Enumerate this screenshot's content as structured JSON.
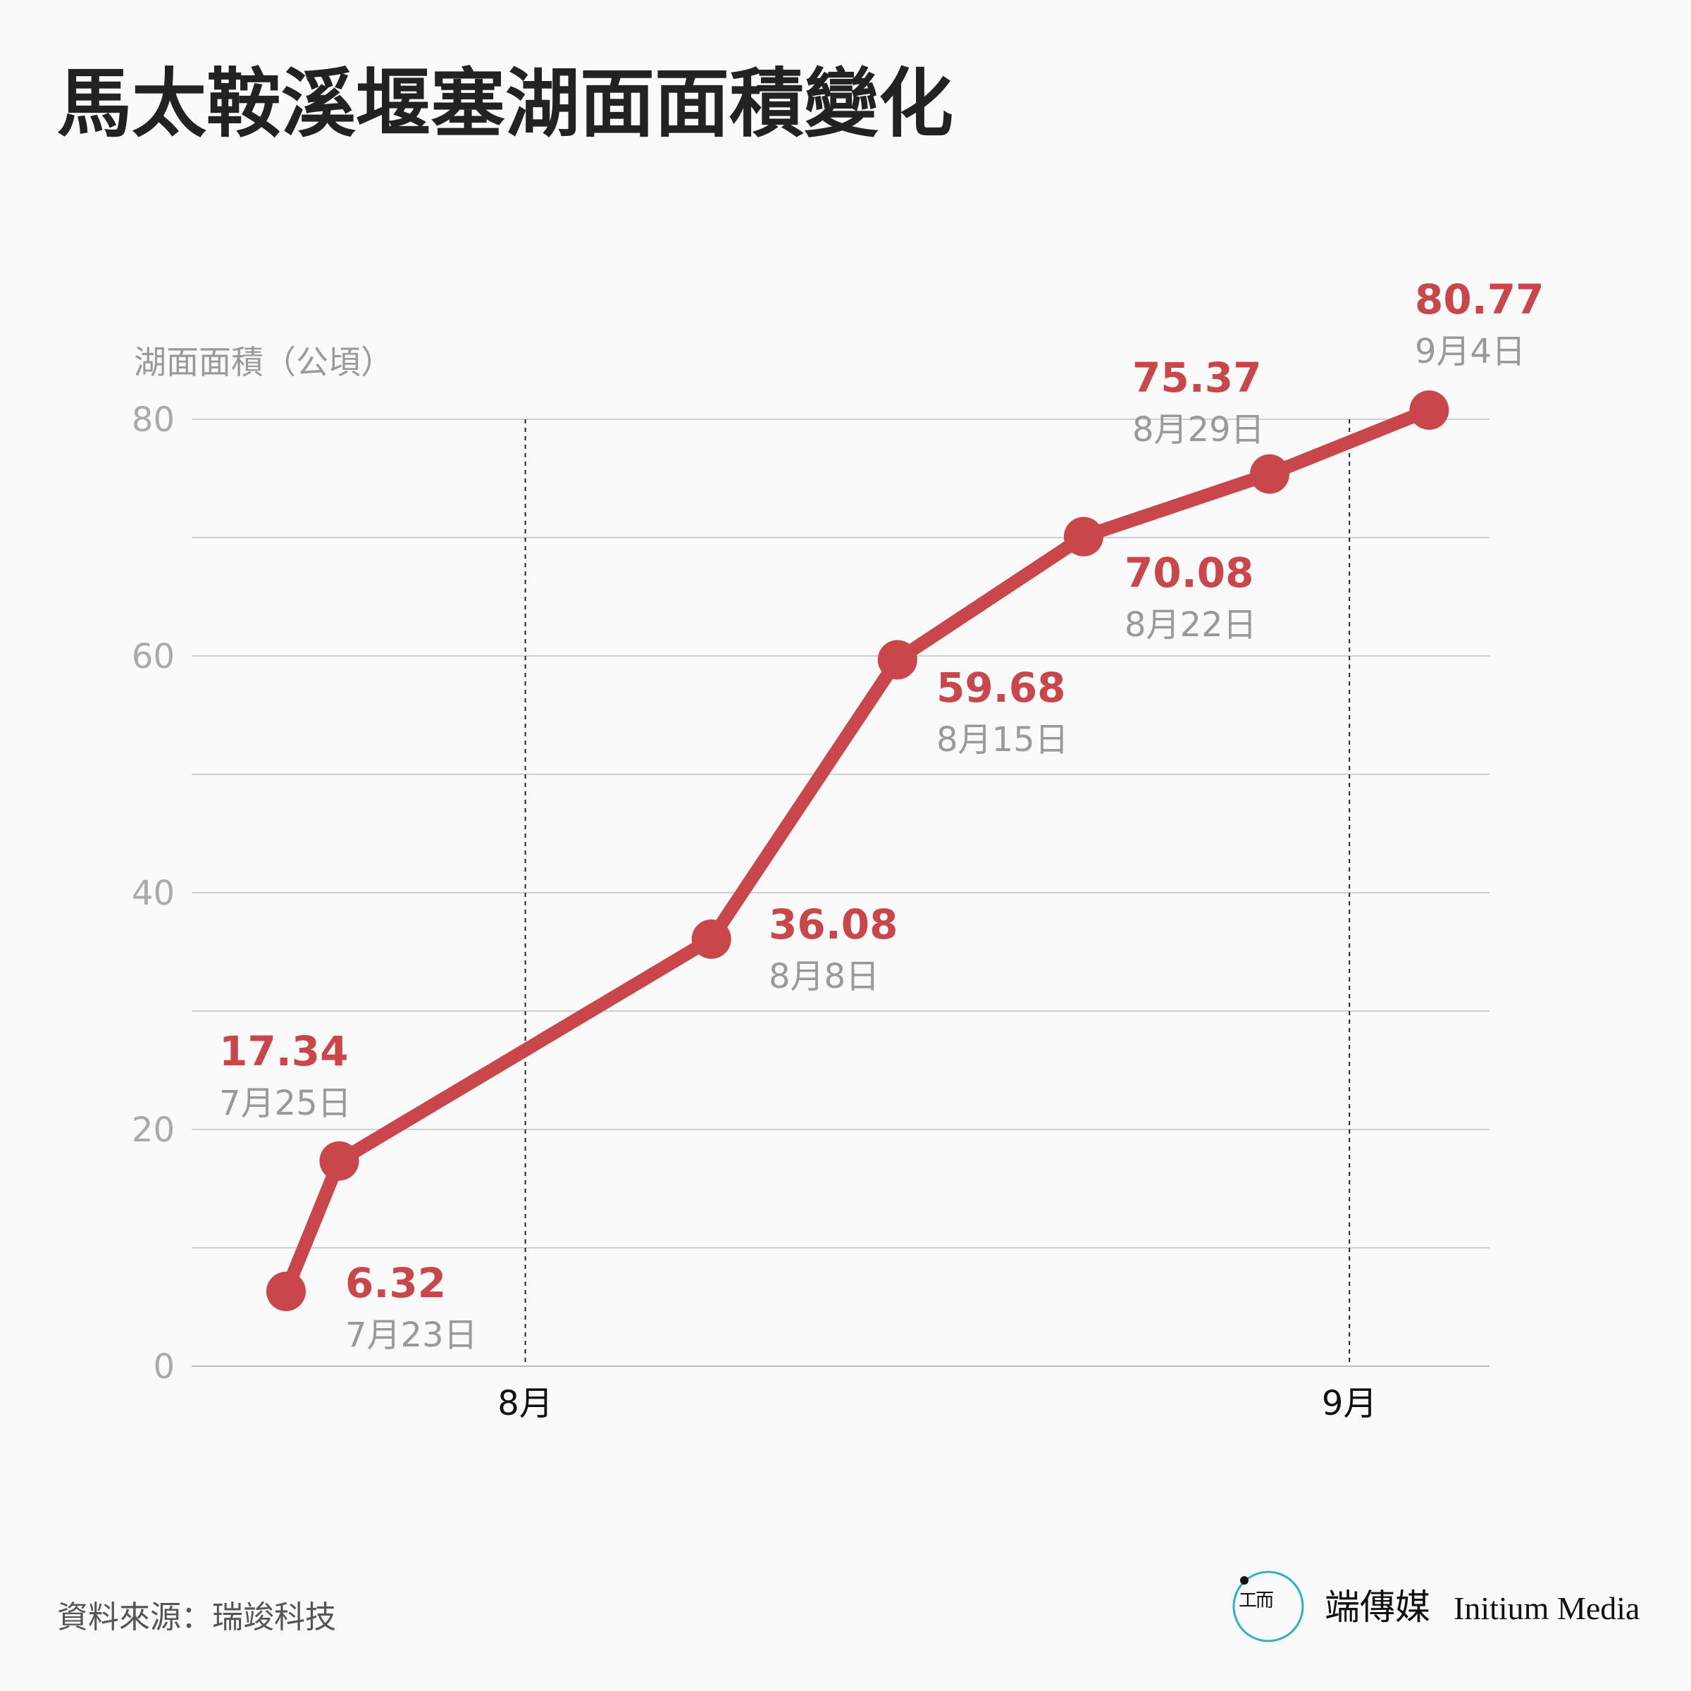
{
  "chart_data": {
    "type": "line",
    "title": "馬太鞍溪堰塞湖面面積變化",
    "ylabel": "湖面面積（公頃）",
    "xlabel": "",
    "ylim": [
      0,
      80
    ],
    "yticks": [
      0,
      20,
      40,
      60,
      80
    ],
    "grid": true,
    "x_month_ticks": [
      {
        "label": "8月",
        "day_offset": 9
      },
      {
        "label": "9月",
        "day_offset": 40
      }
    ],
    "series": [
      {
        "name": "湖面面積",
        "color": "#c9474b",
        "points": [
          {
            "date": "7月23日",
            "day_offset": 0,
            "value": 6.32,
            "label": "6.32"
          },
          {
            "date": "7月25日",
            "day_offset": 2,
            "value": 17.34,
            "label": "17.34"
          },
          {
            "date": "8月8日",
            "day_offset": 16,
            "value": 36.08,
            "label": "36.08"
          },
          {
            "date": "8月15日",
            "day_offset": 23,
            "value": 59.68,
            "label": "59.68"
          },
          {
            "date": "8月22日",
            "day_offset": 30,
            "value": 70.08,
            "label": "70.08"
          },
          {
            "date": "8月29日",
            "day_offset": 37,
            "value": 75.37,
            "label": "75.37"
          },
          {
            "date": "9月4日",
            "day_offset": 43,
            "value": 80.77,
            "label": "80.77"
          }
        ]
      }
    ]
  },
  "source": "資料來源：瑞竣科技",
  "logo": {
    "chinese": "端傳媒",
    "english": "Initium Media",
    "accent": "#2bb3c0"
  }
}
